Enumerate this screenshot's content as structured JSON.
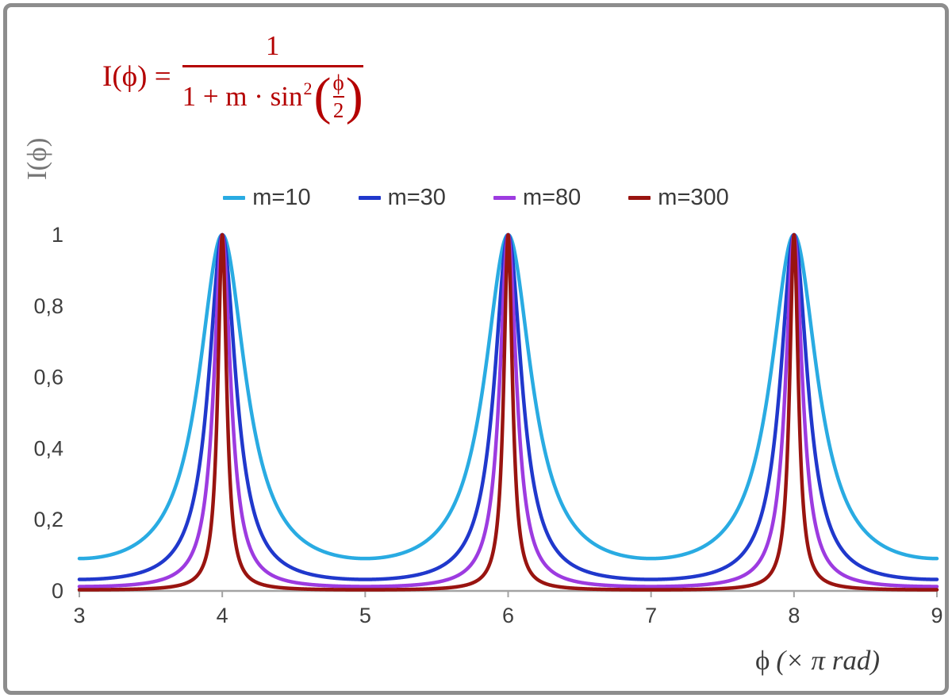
{
  "frame": {
    "border_color": "#8d8d8d",
    "background": "#ffffff"
  },
  "formula": {
    "color": "#b40000",
    "lhs": "I(ϕ) =",
    "numerator": "1",
    "denominator_prefix": "1 + m · sin",
    "denominator_sup": "2",
    "open_paren": "(",
    "close_paren": ")",
    "inner_numerator": "ϕ",
    "inner_denominator": "2"
  },
  "axes": {
    "x_label": "ϕ",
    "x_label_units": "(× π rad)",
    "y_label": "I(ϕ)",
    "x_ticks": [
      "3",
      "4",
      "5",
      "6",
      "7",
      "8",
      "9"
    ],
    "x_tick_values": [
      3,
      4,
      5,
      6,
      7,
      8,
      9
    ],
    "y_ticks": [
      "0",
      "0,2",
      "0,4",
      "0,6",
      "0,8",
      "1"
    ],
    "y_tick_values": [
      0,
      0.2,
      0.4,
      0.6,
      0.8,
      1
    ],
    "axis_color": "#a3a3a3",
    "tick_label_color": "#3f3f3f",
    "y_label_color": "#757575"
  },
  "chart_data": {
    "type": "line",
    "title": "",
    "formula": "I(phi) = 1 / (1 + m * sin^2(phi/2))",
    "xlabel": "phi (× pi rad)",
    "ylabel": "I(phi)",
    "xlim": [
      3,
      9
    ],
    "ylim": [
      0,
      1
    ],
    "grid": false,
    "legend_position": "top-center",
    "peaks_at_x": [
      4,
      6,
      8
    ],
    "peak_value": 1,
    "series": [
      {
        "name": "m=10",
        "m": 10,
        "color": "#29abe2",
        "min_value": 0.091
      },
      {
        "name": "m=30",
        "m": 30,
        "color": "#2038cc",
        "min_value": 0.032
      },
      {
        "name": "m=80",
        "m": 80,
        "color": "#9d3be0",
        "min_value": 0.012
      },
      {
        "name": "m=300",
        "m": 300,
        "color": "#991410",
        "min_value": 0.003
      }
    ]
  }
}
